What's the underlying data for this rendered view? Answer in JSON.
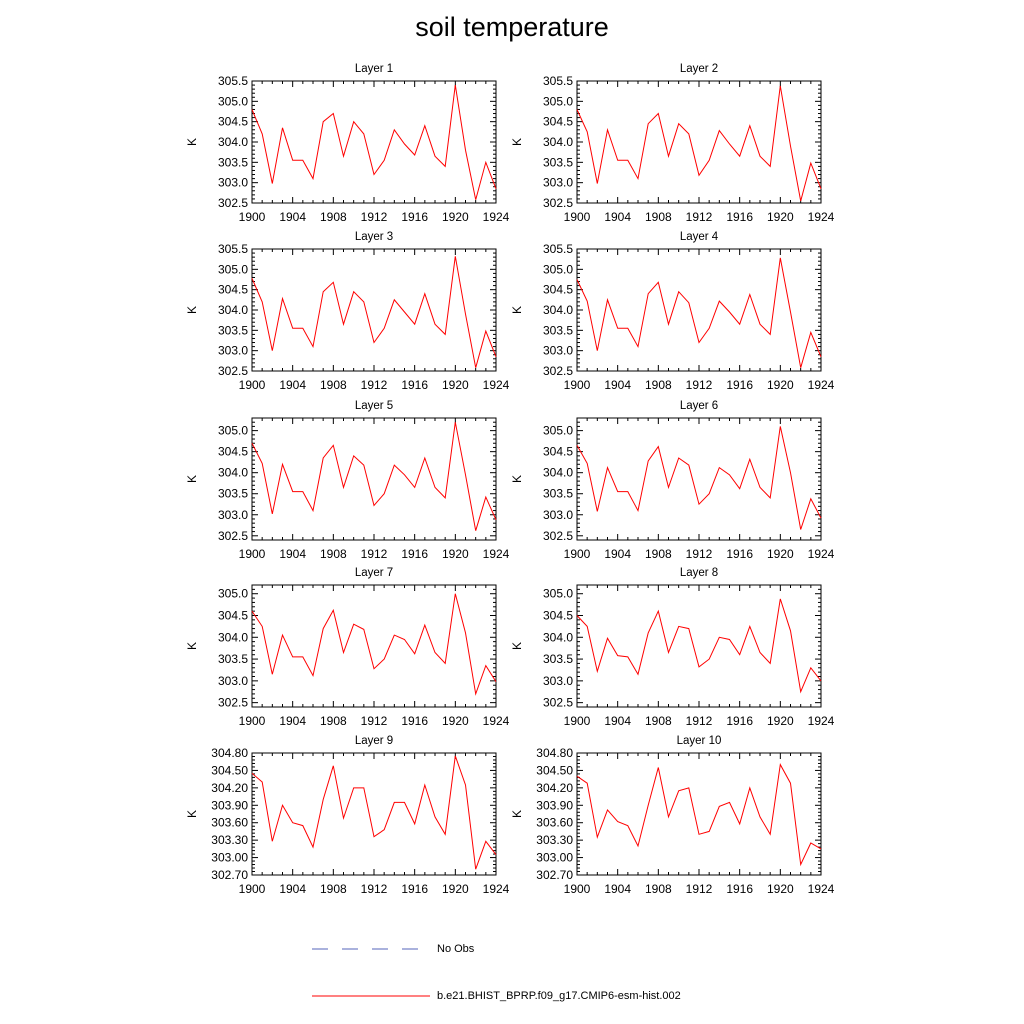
{
  "title": "soil temperature",
  "legend": {
    "items": [
      {
        "label": "No Obs",
        "color": "#5566bb",
        "style": "dashed"
      },
      {
        "label": "b.e21.BHIST_BPRP.f09_g17.CMIP6-esm-hist.002",
        "color": "#ff0000",
        "style": "solid"
      }
    ]
  },
  "chart_data": [
    {
      "type": "line",
      "title": "Layer 1",
      "ylabel": "K",
      "xlim": [
        1900,
        1924
      ],
      "ylim": [
        302.5,
        305.5
      ],
      "xticks": [
        1900,
        1904,
        1908,
        1912,
        1916,
        1920,
        1924
      ],
      "yticks": [
        "302.5",
        "303.0",
        "303.5",
        "304.0",
        "304.5",
        "305.0",
        "305.5"
      ],
      "x": [
        1900,
        1901,
        1902,
        1903,
        1904,
        1905,
        1906,
        1907,
        1908,
        1909,
        1910,
        1911,
        1912,
        1913,
        1914,
        1915,
        1916,
        1917,
        1918,
        1919,
        1920,
        1921,
        1922,
        1923,
        1924
      ],
      "series": [
        {
          "color": "#ff0000",
          "values": [
            304.8,
            304.2,
            302.98,
            304.35,
            303.55,
            303.55,
            303.1,
            304.5,
            304.7,
            303.65,
            304.5,
            304.2,
            303.2,
            303.55,
            304.3,
            303.95,
            303.68,
            304.4,
            303.65,
            303.4,
            305.4,
            303.8,
            302.58,
            303.5,
            302.85
          ]
        }
      ]
    },
    {
      "type": "line",
      "title": "Layer 2",
      "ylabel": "K",
      "xlim": [
        1900,
        1924
      ],
      "ylim": [
        302.5,
        305.5
      ],
      "xticks": [
        1900,
        1904,
        1908,
        1912,
        1916,
        1920,
        1924
      ],
      "yticks": [
        "302.5",
        "303.0",
        "303.5",
        "304.0",
        "304.5",
        "305.0",
        "305.5"
      ],
      "x": [
        1900,
        1901,
        1902,
        1903,
        1904,
        1905,
        1906,
        1907,
        1908,
        1909,
        1910,
        1911,
        1912,
        1913,
        1914,
        1915,
        1916,
        1917,
        1918,
        1919,
        1920,
        1921,
        1922,
        1923,
        1924
      ],
      "series": [
        {
          "color": "#ff0000",
          "values": [
            304.8,
            304.25,
            302.98,
            304.3,
            303.55,
            303.55,
            303.1,
            304.45,
            304.7,
            303.65,
            304.45,
            304.2,
            303.18,
            303.55,
            304.28,
            303.95,
            303.65,
            304.4,
            303.65,
            303.4,
            305.38,
            303.9,
            302.55,
            303.48,
            302.85
          ]
        }
      ]
    },
    {
      "type": "line",
      "title": "Layer 3",
      "ylabel": "K",
      "xlim": [
        1900,
        1924
      ],
      "ylim": [
        302.5,
        305.5
      ],
      "xticks": [
        1900,
        1904,
        1908,
        1912,
        1916,
        1920,
        1924
      ],
      "yticks": [
        "302.5",
        "303.0",
        "303.5",
        "304.0",
        "304.5",
        "305.0",
        "305.5"
      ],
      "x": [
        1900,
        1901,
        1902,
        1903,
        1904,
        1905,
        1906,
        1907,
        1908,
        1909,
        1910,
        1911,
        1912,
        1913,
        1914,
        1915,
        1916,
        1917,
        1918,
        1919,
        1920,
        1921,
        1922,
        1923,
        1924
      ],
      "series": [
        {
          "color": "#ff0000",
          "values": [
            304.78,
            304.2,
            303.0,
            304.28,
            303.55,
            303.55,
            303.1,
            304.45,
            304.68,
            303.65,
            304.45,
            304.2,
            303.2,
            303.55,
            304.25,
            303.95,
            303.65,
            304.4,
            303.65,
            303.4,
            305.32,
            303.9,
            302.58,
            303.48,
            302.85
          ]
        }
      ]
    },
    {
      "type": "line",
      "title": "Layer 4",
      "ylabel": "K",
      "xlim": [
        1900,
        1924
      ],
      "ylim": [
        302.5,
        305.5
      ],
      "xticks": [
        1900,
        1904,
        1908,
        1912,
        1916,
        1920,
        1924
      ],
      "yticks": [
        "302.5",
        "303.0",
        "303.5",
        "304.0",
        "304.5",
        "305.0",
        "305.5"
      ],
      "x": [
        1900,
        1901,
        1902,
        1903,
        1904,
        1905,
        1906,
        1907,
        1908,
        1909,
        1910,
        1911,
        1912,
        1913,
        1914,
        1915,
        1916,
        1917,
        1918,
        1919,
        1920,
        1921,
        1922,
        1923,
        1924
      ],
      "series": [
        {
          "color": "#ff0000",
          "values": [
            304.75,
            304.22,
            303.0,
            304.25,
            303.55,
            303.55,
            303.1,
            304.4,
            304.68,
            303.65,
            304.45,
            304.18,
            303.2,
            303.55,
            304.22,
            303.95,
            303.65,
            304.38,
            303.65,
            303.4,
            305.28,
            303.95,
            302.58,
            303.45,
            302.85
          ]
        }
      ]
    },
    {
      "type": "line",
      "title": "Layer 5",
      "ylabel": "K",
      "xlim": [
        1900,
        1924
      ],
      "ylim": [
        302.4,
        305.3
      ],
      "xticks": [
        1900,
        1904,
        1908,
        1912,
        1916,
        1920,
        1924
      ],
      "yticks": [
        "302.5",
        "303.0",
        "303.5",
        "304.0",
        "304.5",
        "305.0"
      ],
      "x": [
        1900,
        1901,
        1902,
        1903,
        1904,
        1905,
        1906,
        1907,
        1908,
        1909,
        1910,
        1911,
        1912,
        1913,
        1914,
        1915,
        1916,
        1917,
        1918,
        1919,
        1920,
        1921,
        1922,
        1923,
        1924
      ],
      "series": [
        {
          "color": "#ff0000",
          "values": [
            304.7,
            304.22,
            303.02,
            304.2,
            303.55,
            303.55,
            303.1,
            304.35,
            304.65,
            303.65,
            304.4,
            304.18,
            303.22,
            303.5,
            304.18,
            303.95,
            303.65,
            304.35,
            303.65,
            303.4,
            305.2,
            303.95,
            302.62,
            303.42,
            302.88
          ]
        }
      ]
    },
    {
      "type": "line",
      "title": "Layer 6",
      "ylabel": "K",
      "xlim": [
        1900,
        1924
      ],
      "ylim": [
        302.4,
        305.3
      ],
      "xticks": [
        1900,
        1904,
        1908,
        1912,
        1916,
        1920,
        1924
      ],
      "yticks": [
        "302.5",
        "303.0",
        "303.5",
        "304.0",
        "304.5",
        "305.0"
      ],
      "x": [
        1900,
        1901,
        1902,
        1903,
        1904,
        1905,
        1906,
        1907,
        1908,
        1909,
        1910,
        1911,
        1912,
        1913,
        1914,
        1915,
        1916,
        1917,
        1918,
        1919,
        1920,
        1921,
        1922,
        1923,
        1924
      ],
      "series": [
        {
          "color": "#ff0000",
          "values": [
            304.65,
            304.22,
            303.08,
            304.12,
            303.55,
            303.55,
            303.1,
            304.28,
            304.62,
            303.65,
            304.35,
            304.18,
            303.25,
            303.5,
            304.12,
            303.95,
            303.62,
            304.32,
            303.65,
            303.4,
            305.1,
            304.0,
            302.65,
            303.38,
            302.92
          ]
        }
      ]
    },
    {
      "type": "line",
      "title": "Layer 7",
      "ylabel": "K",
      "xlim": [
        1900,
        1924
      ],
      "ylim": [
        302.4,
        305.2
      ],
      "xticks": [
        1900,
        1904,
        1908,
        1912,
        1916,
        1920,
        1924
      ],
      "yticks": [
        "302.5",
        "303.0",
        "303.5",
        "304.0",
        "304.5",
        "305.0"
      ],
      "x": [
        1900,
        1901,
        1902,
        1903,
        1904,
        1905,
        1906,
        1907,
        1908,
        1909,
        1910,
        1911,
        1912,
        1913,
        1914,
        1915,
        1916,
        1917,
        1918,
        1919,
        1920,
        1921,
        1922,
        1923,
        1924
      ],
      "series": [
        {
          "color": "#ff0000",
          "values": [
            304.6,
            304.25,
            303.15,
            304.05,
            303.55,
            303.55,
            303.12,
            304.2,
            304.62,
            303.65,
            304.3,
            304.18,
            303.28,
            303.5,
            304.05,
            303.95,
            303.62,
            304.28,
            303.65,
            303.4,
            305.0,
            304.1,
            302.7,
            303.35,
            302.98
          ]
        }
      ]
    },
    {
      "type": "line",
      "title": "Layer 8",
      "ylabel": "K",
      "xlim": [
        1900,
        1924
      ],
      "ylim": [
        302.4,
        305.2
      ],
      "xticks": [
        1900,
        1904,
        1908,
        1912,
        1916,
        1920,
        1924
      ],
      "yticks": [
        "302.5",
        "303.0",
        "303.5",
        "304.0",
        "304.5",
        "305.0"
      ],
      "x": [
        1900,
        1901,
        1902,
        1903,
        1904,
        1905,
        1906,
        1907,
        1908,
        1909,
        1910,
        1911,
        1912,
        1913,
        1914,
        1915,
        1916,
        1917,
        1918,
        1919,
        1920,
        1921,
        1922,
        1923,
        1924
      ],
      "series": [
        {
          "color": "#ff0000",
          "values": [
            304.5,
            304.25,
            303.22,
            303.98,
            303.58,
            303.55,
            303.15,
            304.1,
            304.6,
            303.65,
            304.25,
            304.2,
            303.32,
            303.5,
            304.0,
            303.95,
            303.6,
            304.25,
            303.65,
            303.4,
            304.88,
            304.15,
            302.75,
            303.3,
            303.0
          ]
        }
      ]
    },
    {
      "type": "line",
      "title": "Layer 9",
      "ylabel": "K",
      "xlim": [
        1900,
        1924
      ],
      "ylim": [
        302.7,
        304.8
      ],
      "xticks": [
        1900,
        1904,
        1908,
        1912,
        1916,
        1920,
        1924
      ],
      "yticks": [
        "302.70",
        "303.00",
        "303.30",
        "303.60",
        "303.90",
        "304.20",
        "304.50",
        "304.80"
      ],
      "x": [
        1900,
        1901,
        1902,
        1903,
        1904,
        1905,
        1906,
        1907,
        1908,
        1909,
        1910,
        1911,
        1912,
        1913,
        1914,
        1915,
        1916,
        1917,
        1918,
        1919,
        1920,
        1921,
        1922,
        1923,
        1924
      ],
      "series": [
        {
          "color": "#ff0000",
          "values": [
            304.45,
            304.3,
            303.28,
            303.9,
            303.6,
            303.55,
            303.18,
            304.0,
            304.58,
            303.68,
            304.2,
            304.2,
            303.36,
            303.48,
            303.95,
            303.95,
            303.58,
            304.25,
            303.7,
            303.4,
            304.75,
            304.25,
            302.8,
            303.28,
            303.05
          ]
        }
      ]
    },
    {
      "type": "line",
      "title": "Layer 10",
      "ylabel": "K",
      "xlim": [
        1900,
        1924
      ],
      "ylim": [
        302.7,
        304.8
      ],
      "xticks": [
        1900,
        1904,
        1908,
        1912,
        1916,
        1920,
        1924
      ],
      "yticks": [
        "302.70",
        "303.00",
        "303.30",
        "303.60",
        "303.90",
        "304.20",
        "304.50",
        "304.80"
      ],
      "x": [
        1900,
        1901,
        1902,
        1903,
        1904,
        1905,
        1906,
        1907,
        1908,
        1909,
        1910,
        1911,
        1912,
        1913,
        1914,
        1915,
        1916,
        1917,
        1918,
        1919,
        1920,
        1921,
        1922,
        1923,
        1924
      ],
      "series": [
        {
          "color": "#ff0000",
          "values": [
            304.4,
            304.28,
            303.35,
            303.82,
            303.62,
            303.55,
            303.2,
            303.9,
            304.55,
            303.7,
            304.15,
            304.2,
            303.4,
            303.45,
            303.88,
            303.95,
            303.58,
            304.2,
            303.7,
            303.4,
            304.6,
            304.28,
            302.88,
            303.25,
            303.15
          ]
        }
      ]
    }
  ]
}
